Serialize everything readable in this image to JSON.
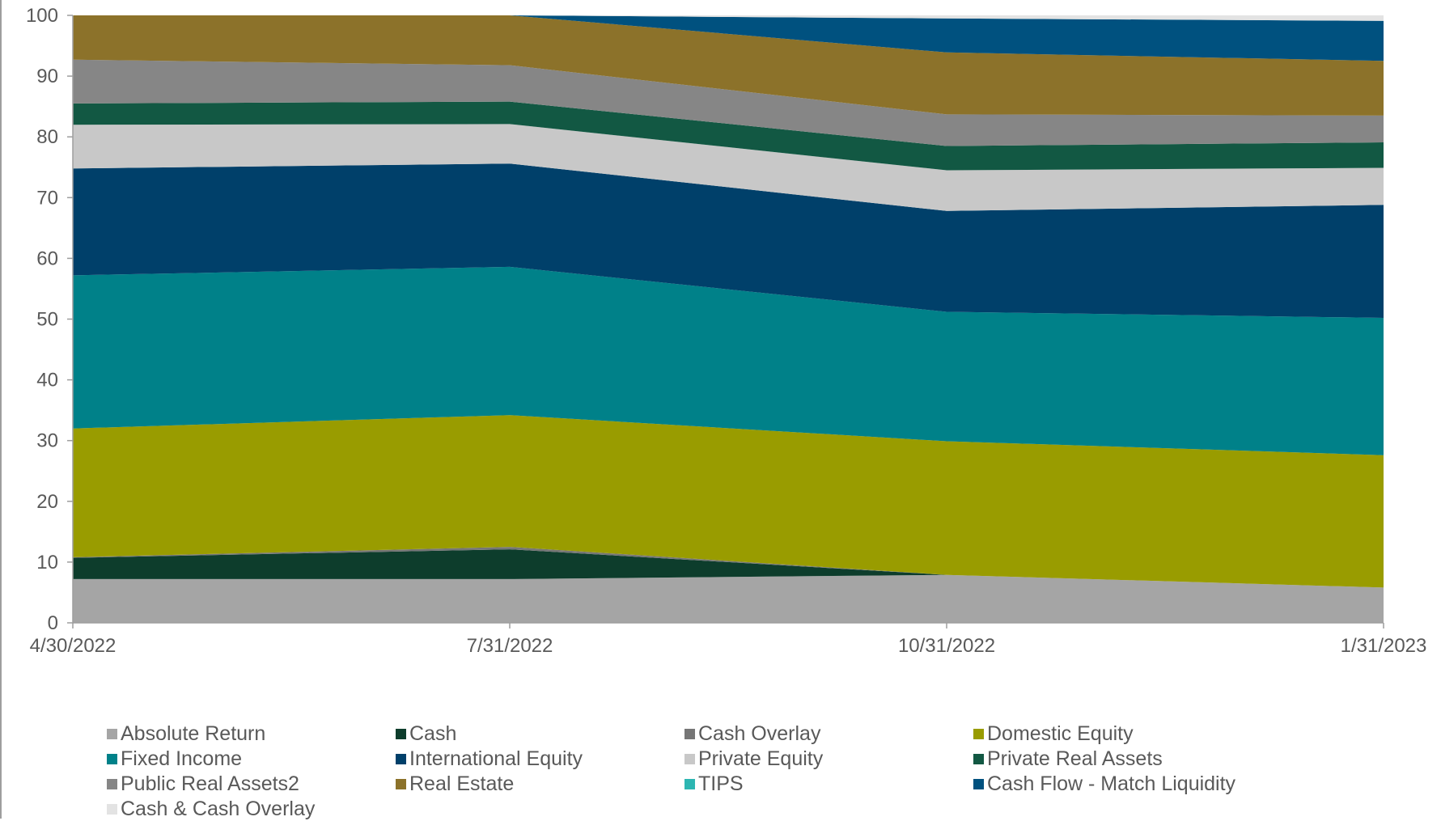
{
  "chart_data": {
    "type": "area",
    "stacked": true,
    "x": [
      "4/30/2022",
      "7/31/2022",
      "10/31/2022",
      "1/31/2023"
    ],
    "ylim": [
      0,
      100
    ],
    "yticks": [
      "0",
      "10",
      "20",
      "30",
      "40",
      "50",
      "60",
      "70",
      "80",
      "90",
      "100"
    ],
    "grid": false,
    "legend_position": "bottom",
    "series": [
      {
        "name": "Absolute Return",
        "color": "#a5a5a5",
        "values": [
          7.2,
          7.2,
          7.9,
          5.8
        ]
      },
      {
        "name": "Cash",
        "color": "#0d3d2c",
        "values": [
          3.5,
          4.9,
          0.0,
          0.0
        ]
      },
      {
        "name": "Cash Overlay",
        "color": "#767676",
        "values": [
          0.1,
          0.4,
          0.0,
          0.0
        ]
      },
      {
        "name": "Domestic Equity",
        "color": "#999c00",
        "values": [
          21.2,
          21.7,
          22.0,
          21.8
        ]
      },
      {
        "name": "Fixed Income",
        "color": "#008189",
        "values": [
          25.2,
          24.4,
          21.3,
          22.6
        ]
      },
      {
        "name": "International Equity",
        "color": "#00406a",
        "values": [
          17.6,
          17.0,
          16.6,
          18.6
        ]
      },
      {
        "name": "Private Equity",
        "color": "#c8c8c8",
        "values": [
          7.2,
          6.5,
          6.7,
          6.1
        ]
      },
      {
        "name": "Private Real Assets",
        "color": "#125843",
        "values": [
          3.5,
          3.7,
          4.0,
          4.2
        ]
      },
      {
        "name": "Public Real Assets2",
        "color": "#868686",
        "values": [
          7.2,
          6.0,
          5.2,
          4.4
        ]
      },
      {
        "name": "Real Estate",
        "color": "#8c722a",
        "values": [
          7.3,
          8.2,
          10.2,
          9.0
        ]
      },
      {
        "name": "TIPS",
        "color": "#2db6b2",
        "values": [
          0.0,
          0.0,
          0.0,
          0.0
        ]
      },
      {
        "name": "Cash Flow - Match Liquidity",
        "color": "#00517f",
        "values": [
          0.0,
          0.0,
          5.6,
          6.6
        ]
      },
      {
        "name": "Cash & Cash Overlay",
        "color": "#e3e3e3",
        "values": [
          0.0,
          0.0,
          0.5,
          0.9
        ]
      }
    ]
  }
}
